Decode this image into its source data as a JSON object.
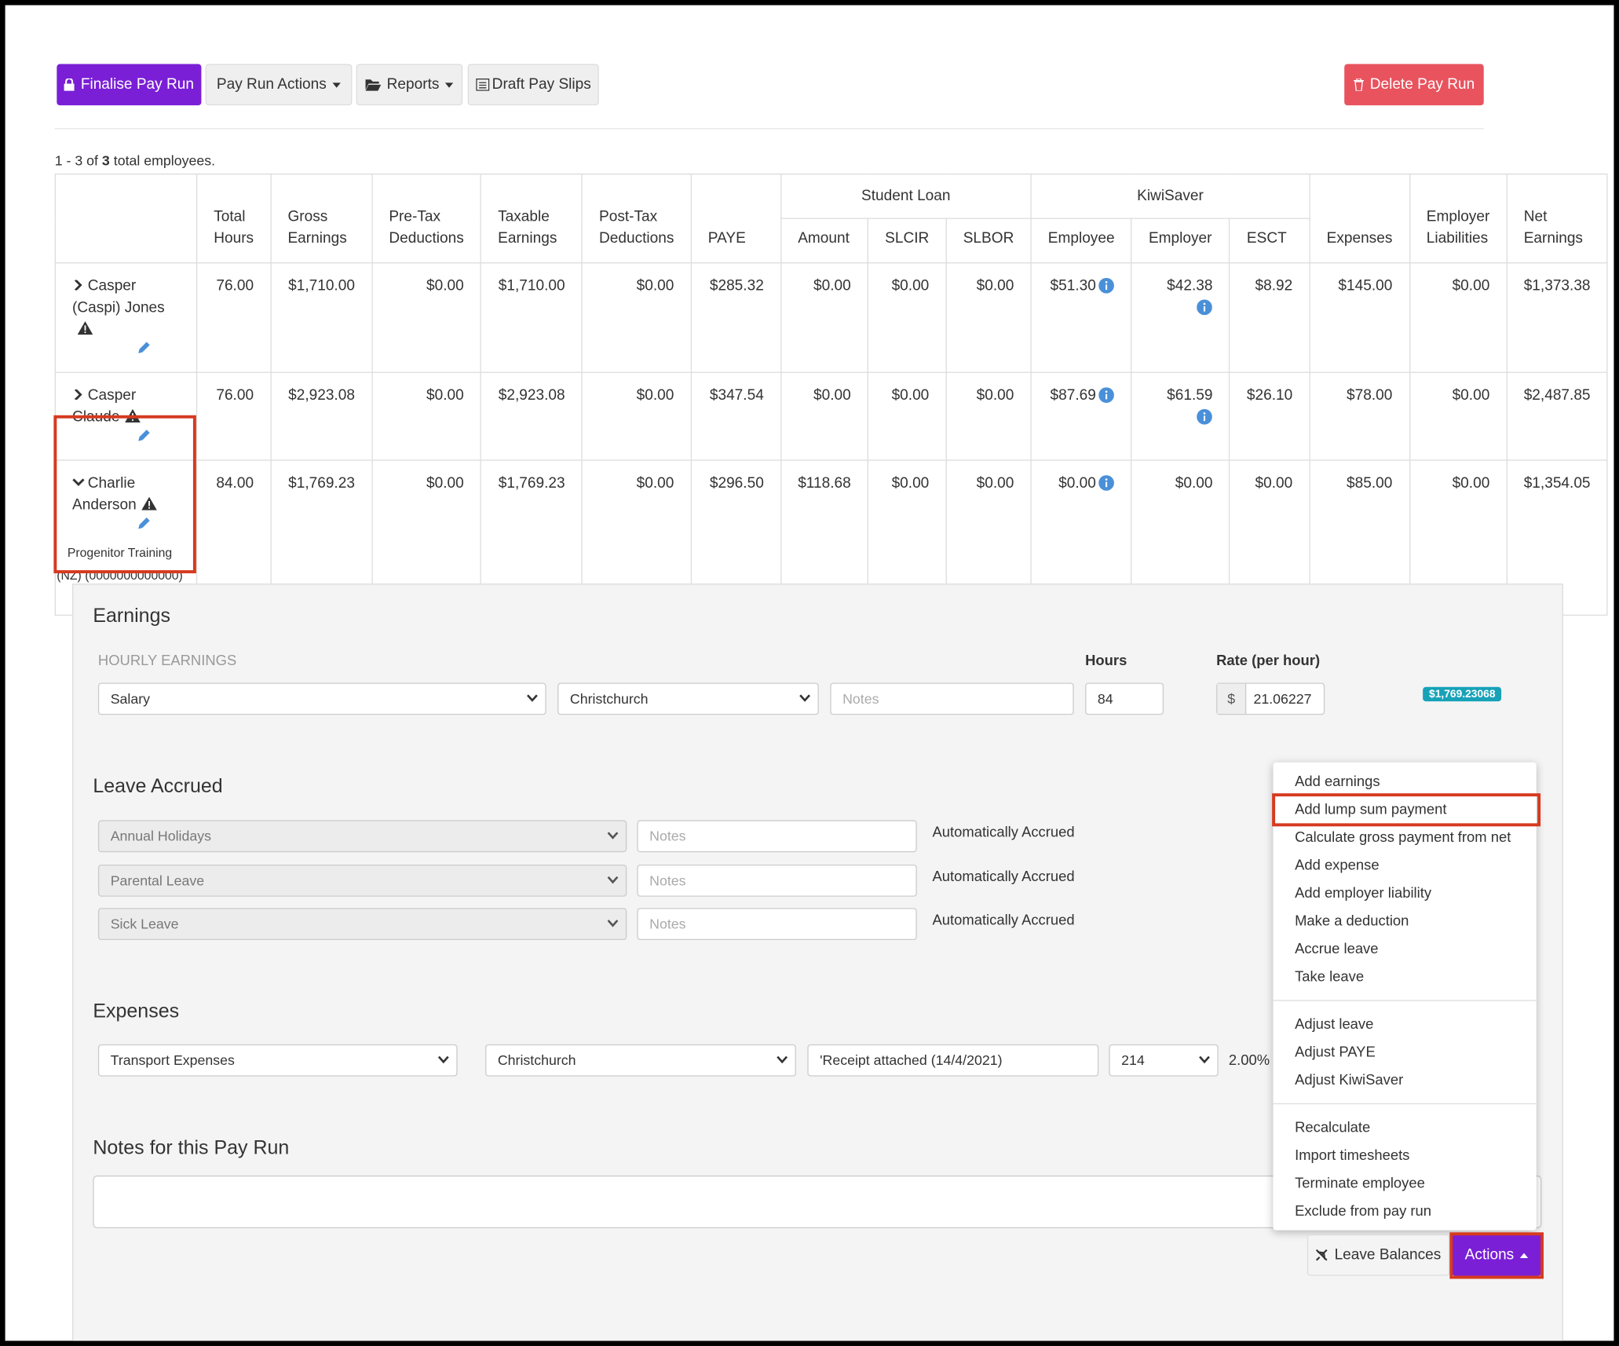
{
  "toolbar": {
    "finalise": "Finalise Pay Run",
    "pay_run_actions": "Pay Run Actions",
    "reports": "Reports",
    "draft_pay_slips": "Draft Pay Slips",
    "delete": "Delete Pay Run"
  },
  "summary": {
    "range": "1 - 3 of",
    "total": "3",
    "suffix": "total employees."
  },
  "table": {
    "groups": [
      "Student Loan",
      "KiwiSaver"
    ],
    "headers": [
      "Total Hours",
      "Gross Earnings",
      "Pre-Tax Deductions",
      "Taxable Earnings",
      "Post-Tax Deductions",
      "PAYE",
      "Amount",
      "SLCIR",
      "SLBOR",
      "Employee",
      "Employer",
      "ESCT",
      "Expenses",
      "Employer Liabilities",
      "Net Earnings"
    ],
    "rows": [
      {
        "name": "Casper (Caspi) Jones",
        "cells": [
          "76.00",
          "$1,710.00",
          "$0.00",
          "$1,710.00",
          "$0.00",
          "$285.32",
          "$0.00",
          "$0.00",
          "$0.00",
          "$51.30",
          "$42.38",
          "$8.92",
          "$145.00",
          "$0.00",
          "$1,373.38"
        ]
      },
      {
        "name": "Casper Claude",
        "cells": [
          "76.00",
          "$2,923.08",
          "$0.00",
          "$2,923.08",
          "$0.00",
          "$347.54",
          "$0.00",
          "$0.00",
          "$0.00",
          "$87.69",
          "$61.59",
          "$26.10",
          "$78.00",
          "$0.00",
          "$2,487.85"
        ]
      },
      {
        "name": "Charlie Anderson",
        "detail": "Progenitor Training (NZ) (0000000000000)",
        "cells": [
          "84.00",
          "$1,769.23",
          "$0.00",
          "$1,769.23",
          "$0.00",
          "$296.50",
          "$118.68",
          "$0.00",
          "$0.00",
          "$0.00",
          "$0.00",
          "$0.00",
          "$85.00",
          "$0.00",
          "$1,354.05"
        ]
      }
    ]
  },
  "earnings": {
    "title": "Earnings",
    "section": "HOURLY EARNINGS",
    "hours_label": "Hours",
    "rate_label": "Rate (per hour)",
    "type": "Salary",
    "location": "Christchurch",
    "notes_placeholder": "Notes",
    "hours": "84",
    "currency": "$",
    "rate": "21.06227",
    "total": "$1,769.23068"
  },
  "leave": {
    "title": "Leave Accrued",
    "rows": [
      {
        "type": "Annual Holidays",
        "notes_placeholder": "Notes",
        "status": "Automatically Accrued"
      },
      {
        "type": "Parental Leave",
        "notes_placeholder": "Notes",
        "status": "Automatically Accrued"
      },
      {
        "type": "Sick Leave",
        "notes_placeholder": "Notes",
        "status": "Automatically Accrued"
      }
    ]
  },
  "expenses": {
    "title": "Expenses",
    "type": "Transport Expenses",
    "location": "Christchurch",
    "note": "'Receipt attached (14/4/2021)",
    "code": "214",
    "rate": "2.00%"
  },
  "notes": {
    "title": "Notes for this Pay Run"
  },
  "actions_menu": {
    "groups": [
      [
        "Add earnings",
        "Add lump sum payment",
        "Calculate gross payment from net",
        "Add expense",
        "Add employer liability",
        "Make a deduction",
        "Accrue leave",
        "Take leave"
      ],
      [
        "Adjust leave",
        "Adjust PAYE",
        "Adjust KiwiSaver"
      ],
      [
        "Recalculate",
        "Import timesheets",
        "Terminate employee",
        "Exclude from pay run"
      ]
    ]
  },
  "footer": {
    "leave_balances": "Leave Balances",
    "actions": "Actions"
  }
}
